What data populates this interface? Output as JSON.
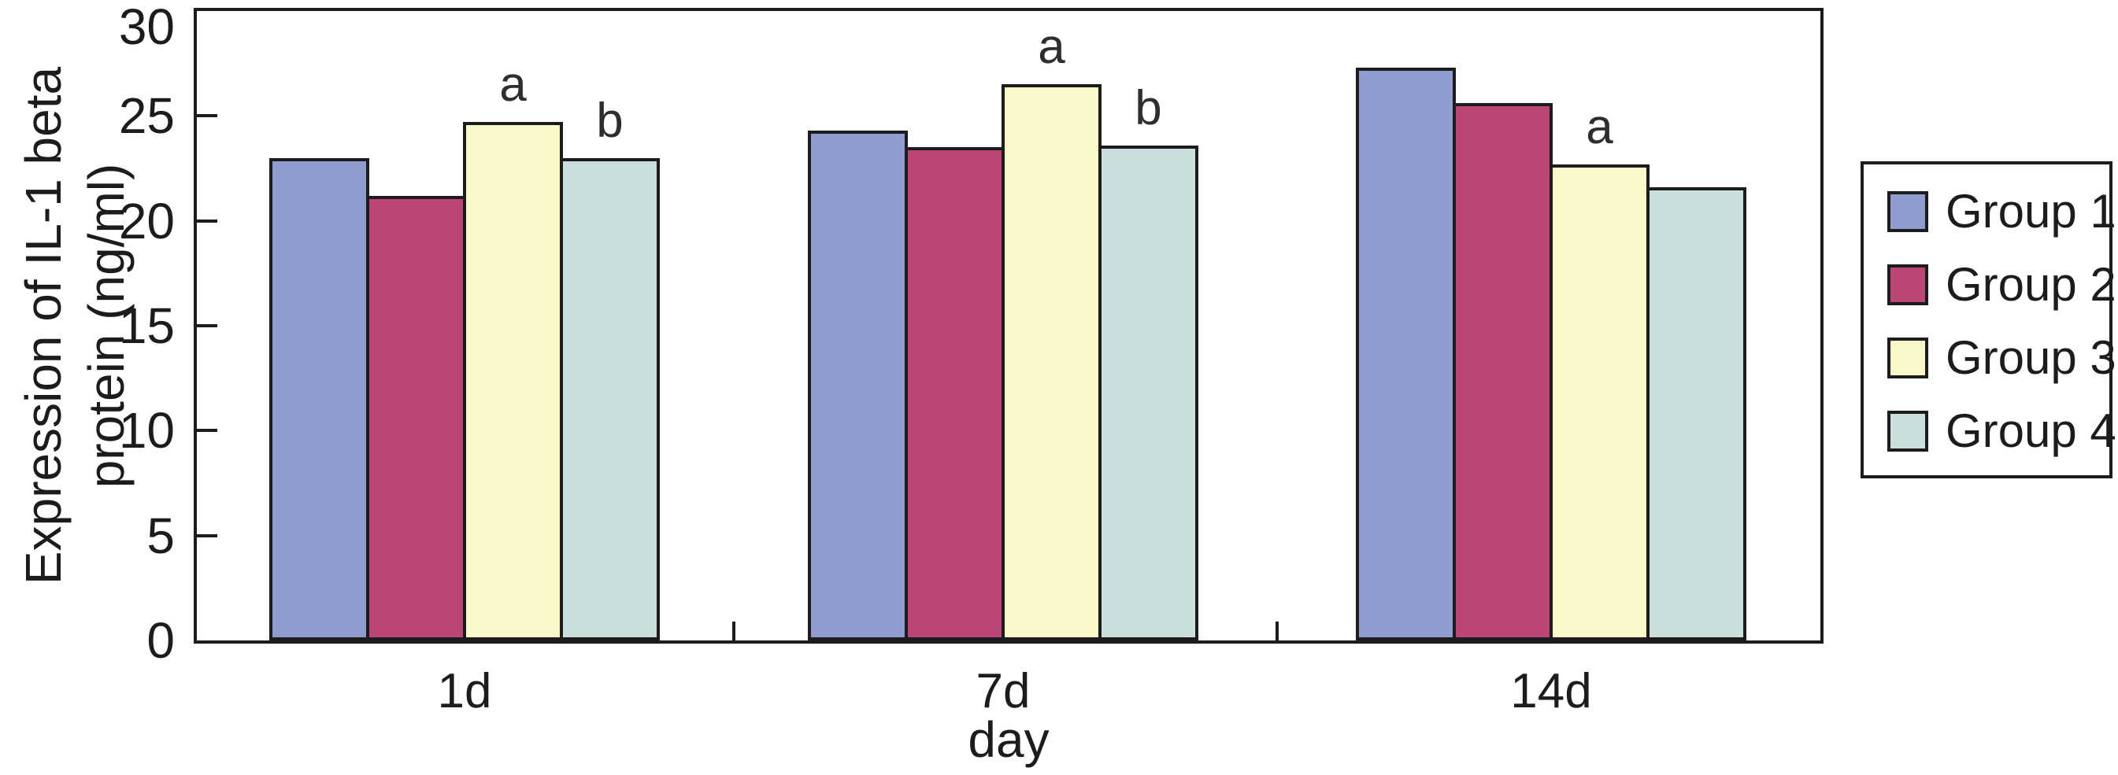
{
  "chart_data": {
    "type": "bar",
    "categories": [
      "1d",
      "7d",
      "14d"
    ],
    "series": [
      {
        "name": "Group 1",
        "color": "#8f9ccd",
        "values": [
          23.0,
          24.3,
          27.3
        ]
      },
      {
        "name": "Group 2",
        "color": "#bc4577",
        "values": [
          21.2,
          23.5,
          25.6
        ]
      },
      {
        "name": "Group 3",
        "color": "#faf7c8",
        "values": [
          24.7,
          26.5,
          22.7
        ]
      },
      {
        "name": "Group 4",
        "color": "#c9dedd",
        "values": [
          23.0,
          23.6,
          21.6
        ]
      }
    ],
    "annotations": [
      {
        "category": "1d",
        "series": "Group 3",
        "label": "a"
      },
      {
        "category": "1d",
        "series": "Group 4",
        "label": "b"
      },
      {
        "category": "7d",
        "series": "Group 3",
        "label": "a"
      },
      {
        "category": "7d",
        "series": "Group 4",
        "label": "b"
      },
      {
        "category": "14d",
        "series": "Group 3",
        "label": "a"
      }
    ],
    "title": "",
    "xlabel": "day",
    "ylabel": "Expression of IL-1 beta protein (ng/ml)",
    "ylabel_lines": [
      "Expression of IL-1 beta",
      "protein (ng/ml)"
    ],
    "ylim": [
      0,
      30
    ],
    "yticks": [
      0,
      5,
      10,
      15,
      20,
      25,
      30
    ],
    "grid": false,
    "legend_position": "right-outside"
  },
  "colors": {
    "axis": "#1c1c1c",
    "annotation": "#2e2e2e",
    "background": "#ffffff"
  }
}
